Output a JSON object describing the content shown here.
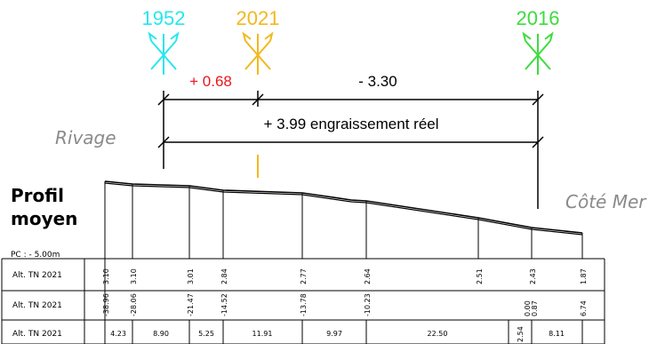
{
  "markers": [
    {
      "year": "1952",
      "color": "#28e6f0"
    },
    {
      "year": "2021",
      "color": "#f2b81e"
    },
    {
      "year": "2016",
      "color": "#3ddc3d"
    }
  ],
  "dimensions": {
    "left": {
      "text": "+ 0.68",
      "color": "#e8161c"
    },
    "right": {
      "text": "- 3.30",
      "color": "#000000"
    },
    "total": {
      "text": "+ 3.99 engraissement réel",
      "color": "#000000"
    }
  },
  "labels": {
    "rivage": "Rivage",
    "cote_mer": "Côté Mer",
    "title_line1": "Profil",
    "title_line2": "moyen",
    "pc": "PC : - 5.00m"
  },
  "table": {
    "row_labels": [
      "Alt. TN 2021",
      "Alt. TN 2021",
      "Alt. TN 2021"
    ],
    "altitudes": [
      "3.10",
      "3.10",
      "3.01",
      "2.84",
      "2.77",
      "2.64",
      "2.51",
      "2.43",
      "1.87"
    ],
    "positions": [
      "-38.96",
      "-28.06",
      "-21.47",
      "-14.52",
      "-13.78",
      "-10.23",
      "0.00",
      "0.87",
      "6.74"
    ],
    "distances": [
      "4.23",
      "8.90",
      "5.25",
      "11.91",
      "9.97",
      "22.50",
      "2.54",
      "8.11"
    ]
  }
}
